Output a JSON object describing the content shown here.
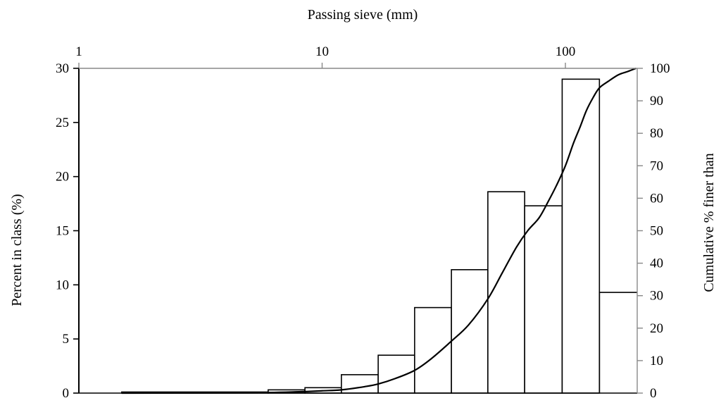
{
  "chart_data": {
    "type": "bar",
    "secondary_type": "line",
    "xlabel": "Passing sieve (mm)",
    "x_scale": "log",
    "x_ticks": [
      "1",
      "10",
      "100"
    ],
    "x_tick_values": [
      1,
      10,
      100
    ],
    "xlim": [
      1,
      230
    ],
    "ylabel": "Percent in class (%)",
    "ylim": [
      0,
      30
    ],
    "y_ticks": [
      "0",
      "5",
      "10",
      "15",
      "20",
      "25",
      "30"
    ],
    "y_tick_values": [
      0,
      5,
      10,
      15,
      20,
      25,
      30
    ],
    "y2label": "Cumulative % finer than",
    "y2lim": [
      0,
      100
    ],
    "y2_ticks": [
      "0",
      "10",
      "20",
      "30",
      "40",
      "50",
      "60",
      "70",
      "80",
      "90",
      "100"
    ],
    "y2_tick_values": [
      0,
      10,
      20,
      30,
      40,
      50,
      60,
      70,
      80,
      90,
      100
    ],
    "grid": false,
    "bins": [
      {
        "x0": 1.5,
        "x1": 6,
        "value": 0.1
      },
      {
        "x0": 6,
        "x1": 8.5,
        "value": 0.3
      },
      {
        "x0": 8.5,
        "x1": 12,
        "value": 0.5
      },
      {
        "x0": 12,
        "x1": 17,
        "value": 1.7
      },
      {
        "x0": 17,
        "x1": 24,
        "value": 3.5
      },
      {
        "x0": 24,
        "x1": 34,
        "value": 7.9
      },
      {
        "x0": 34,
        "x1": 48,
        "value": 11.4
      },
      {
        "x0": 48,
        "x1": 68,
        "value": 18.6
      },
      {
        "x0": 68,
        "x1": 97,
        "value": 17.3
      },
      {
        "x0": 97,
        "x1": 138,
        "value": 29.0
      },
      {
        "x0": 138,
        "x1": 230,
        "value": 9.3
      }
    ],
    "cumulative": {
      "x": [
        1.5,
        5,
        8,
        10,
        12,
        15,
        17,
        20,
        24,
        28,
        34,
        40,
        48,
        55,
        63,
        70,
        78,
        85,
        92,
        100,
        108,
        115,
        122,
        130,
        138,
        150,
        165,
        180,
        195
      ],
      "y": [
        0,
        0.1,
        0.4,
        0.7,
        1,
        2,
        2.8,
        4.5,
        7,
        10.5,
        16,
        21,
        29,
        37,
        45,
        50,
        54,
        59,
        64,
        70,
        77,
        82,
        87,
        91,
        94,
        96,
        98,
        99,
        100
      ]
    }
  }
}
